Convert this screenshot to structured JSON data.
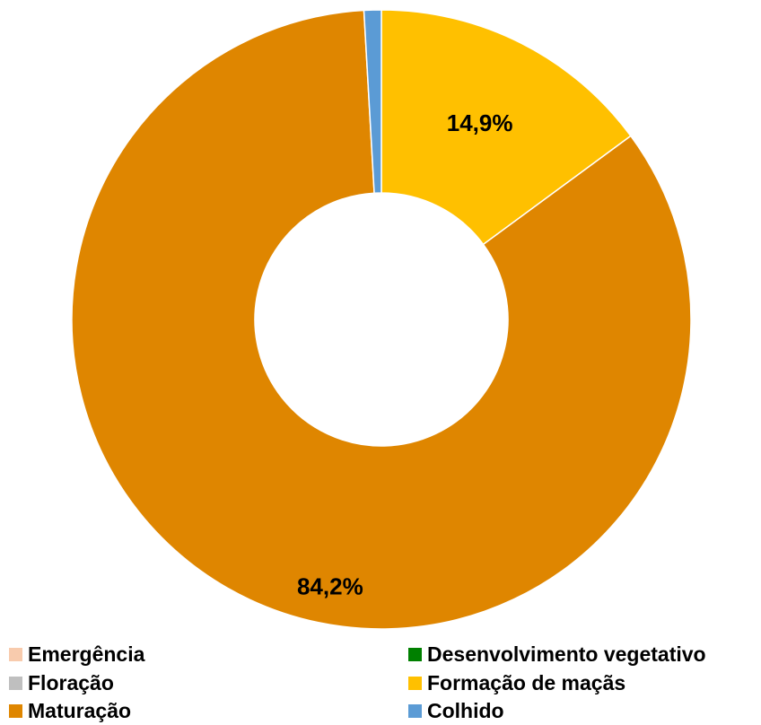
{
  "chart_data": {
    "type": "pie",
    "style": "donut",
    "title": "",
    "categories": [
      "Emergência",
      "Desenvolvimento vegetativo",
      "Floração",
      "Formação de maçãs",
      "Maturação",
      "Colhido"
    ],
    "values": [
      0,
      0,
      0,
      14.9,
      84.2,
      0.9
    ],
    "data_labels": [
      "",
      "",
      "",
      "14,9%",
      "84,2%",
      ""
    ],
    "colors": [
      "#F8CBAD",
      "#008000",
      "#BFBFBF",
      "#FFC000",
      "#DF8600",
      "#5B9BD5"
    ],
    "legend_placement": "bottom"
  }
}
